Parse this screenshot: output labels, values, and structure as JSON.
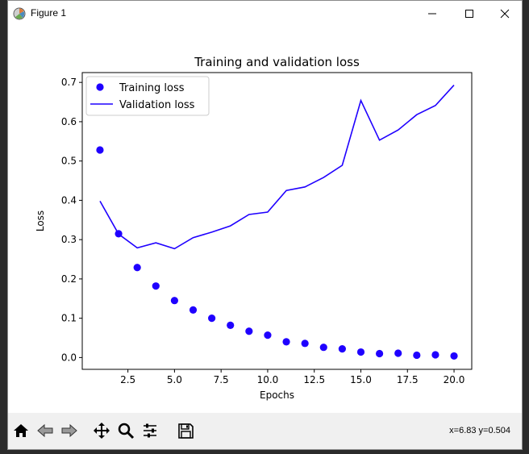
{
  "window": {
    "title": "Figure 1"
  },
  "toolbar": {
    "buttons": [
      "home-icon",
      "back-icon",
      "forward-icon",
      "pan-icon",
      "zoom-icon",
      "configure-icon",
      "save-icon"
    ],
    "coords": "x=6.83 y=0.504"
  },
  "colors": {
    "series": "#1f00ff",
    "axes": "#000000",
    "background": "#ffffff"
  },
  "chart_data": {
    "type": "scatter",
    "title": "Training and validation loss",
    "xlabel": "Epochs",
    "ylabel": "Loss",
    "xlim": [
      0.05,
      20.95
    ],
    "ylim": [
      -0.03,
      0.725
    ],
    "xticks": [
      2.5,
      5.0,
      7.5,
      10.0,
      12.5,
      15.0,
      17.5,
      20.0
    ],
    "xtick_labels": [
      "2.5",
      "5.0",
      "7.5",
      "10.0",
      "12.5",
      "15.0",
      "17.5",
      "20.0"
    ],
    "yticks": [
      0.0,
      0.1,
      0.2,
      0.3,
      0.4,
      0.5,
      0.6,
      0.7
    ],
    "ytick_labels": [
      "0.0",
      "0.1",
      "0.2",
      "0.3",
      "0.4",
      "0.5",
      "0.6",
      "0.7"
    ],
    "grid": false,
    "legend": "upper-left",
    "series": [
      {
        "name": "Training loss",
        "kind": "markers",
        "x": [
          1,
          2,
          3,
          4,
          5,
          6,
          7,
          8,
          9,
          10,
          11,
          12,
          13,
          14,
          15,
          16,
          17,
          18,
          19,
          20
        ],
        "y": [
          0.528,
          0.315,
          0.229,
          0.182,
          0.145,
          0.121,
          0.1,
          0.082,
          0.067,
          0.057,
          0.04,
          0.036,
          0.026,
          0.022,
          0.014,
          0.01,
          0.011,
          0.006,
          0.007,
          0.004
        ]
      },
      {
        "name": "Validation loss",
        "kind": "line",
        "x": [
          1,
          2,
          3,
          4,
          5,
          6,
          7,
          8,
          9,
          10,
          11,
          12,
          13,
          14,
          15,
          16,
          17,
          18,
          19,
          20
        ],
        "y": [
          0.398,
          0.314,
          0.279,
          0.292,
          0.277,
          0.305,
          0.319,
          0.335,
          0.364,
          0.37,
          0.425,
          0.434,
          0.458,
          0.489,
          0.654,
          0.553,
          0.579,
          0.618,
          0.641,
          0.693
        ]
      }
    ]
  }
}
